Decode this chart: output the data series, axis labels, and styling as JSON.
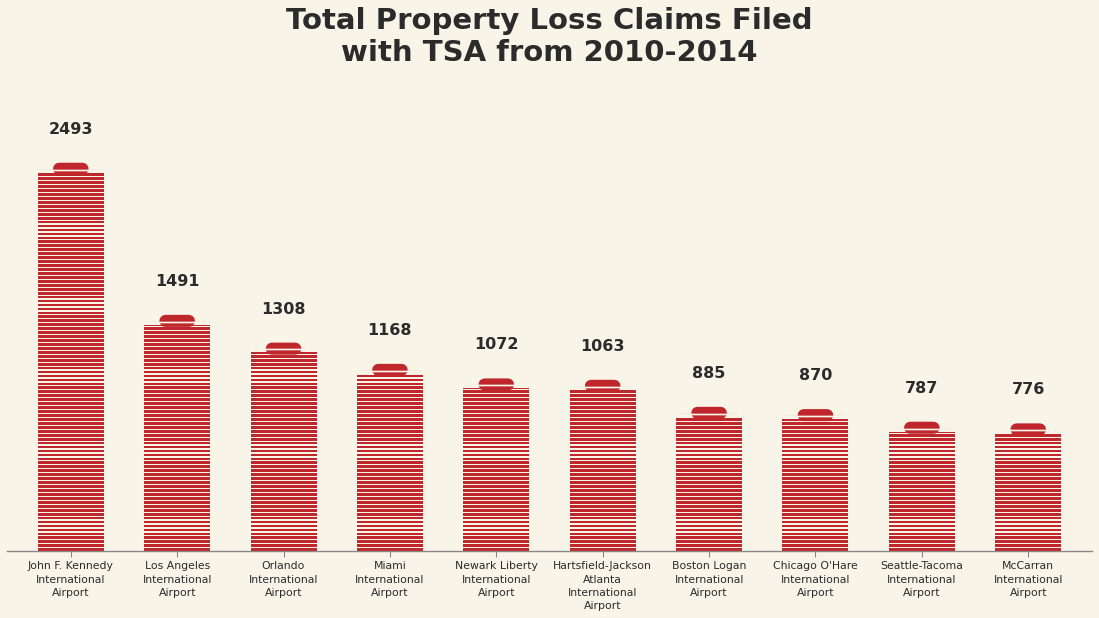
{
  "title": "Total Property Loss Claims Filed\nwith TSA from 2010-2014",
  "background_color": "#f8f4e8",
  "bar_color": "#c0272d",
  "stripe_color": "#f8f4e8",
  "title_color": "#2b2b2b",
  "label_color": "#2b2b2b",
  "categories": [
    "John F. Kennedy\nInternational\nAirport",
    "Los Angeles\nInternational\nAirport",
    "Orlando\nInternational\nAirport",
    "Miami\nInternational\nAirport",
    "Newark Liberty\nInternational\nAirport",
    "Hartsfield-Jackson\nAtlanta\nInternational\nAirport",
    "Boston Logan\nInternational\nAirport",
    "Chicago O'Hare\nInternational\nAirport",
    "Seattle-Tacoma\nInternational\nAirport",
    "McCarran\nInternational\nAirport"
  ],
  "values": [
    2493,
    1491,
    1308,
    1168,
    1072,
    1063,
    885,
    870,
    787,
    776
  ],
  "figsize": [
    10.99,
    6.18
  ],
  "dpi": 100
}
